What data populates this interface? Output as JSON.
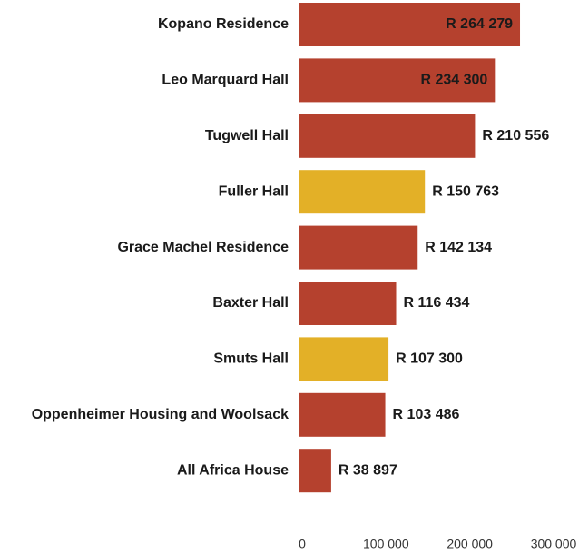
{
  "chart_data": {
    "type": "bar",
    "orientation": "horizontal",
    "categories": [
      "Kopano Residence",
      "Leo Marquard Hall",
      "Tugwell Hall",
      "Fuller Hall",
      "Grace Machel Residence",
      "Baxter Hall",
      "Smuts Hall",
      "Oppenheimer Housing and Woolsack",
      "All Africa House"
    ],
    "values": [
      264279,
      234300,
      210556,
      150763,
      142134,
      116434,
      107300,
      103486,
      38897
    ],
    "value_labels": [
      "R 264 279",
      "R 234 300",
      "R 210 556",
      "R 150 763",
      "R 142 134",
      "R 116 434",
      "R 107 300",
      "R 103 486",
      "R 38 897"
    ],
    "colors": [
      "#b5412e",
      "#b5412e",
      "#b5412e",
      "#e3b027",
      "#b5412e",
      "#b5412e",
      "#e3b027",
      "#b5412e",
      "#b5412e"
    ],
    "xlim": [
      0,
      300000
    ],
    "xticks": [
      0,
      {
        "value": 100000,
        "label": "100 000"
      },
      {
        "value": 200000,
        "label": "200 000"
      },
      {
        "value": 300000,
        "label": "300 000"
      }
    ],
    "grid": false
  }
}
